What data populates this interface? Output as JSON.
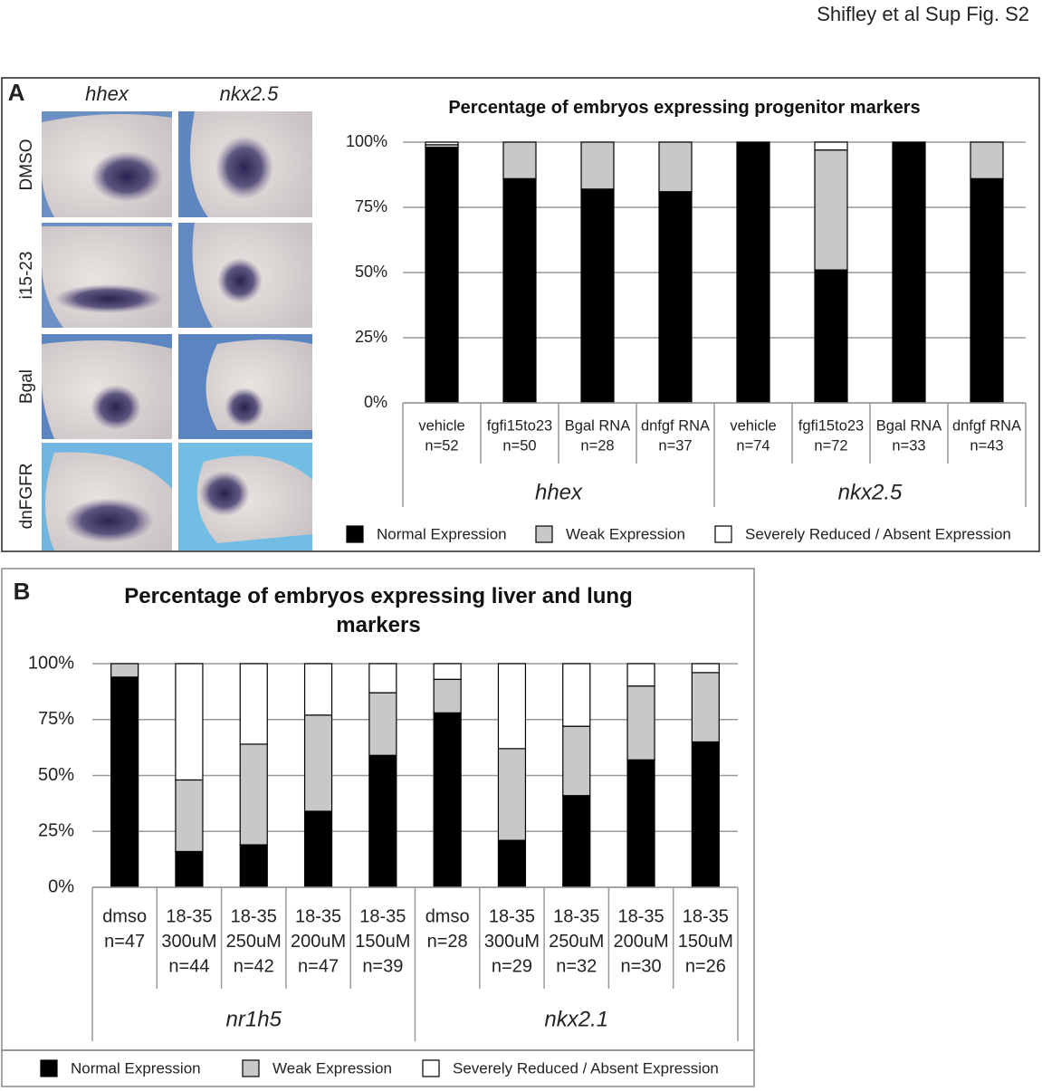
{
  "header": "Shifley et al Sup Fig. S2",
  "panel_a": {
    "label": "A",
    "columns": [
      "hhex",
      "nkx2.5"
    ],
    "rows": [
      "DMSO",
      "i15-23",
      "Bgal",
      "dnFGFR"
    ]
  },
  "panel_b": {
    "label": "B"
  },
  "chart_data": [
    {
      "type": "stacked-bar",
      "title": "Percentage of embryos expressing progenitor markers",
      "categories": [
        [
          "vehicle",
          "n=52"
        ],
        [
          "fgfi15to23",
          "n=50"
        ],
        [
          "Bgal RNA",
          "n=28"
        ],
        [
          "dnfgf RNA",
          "n=37"
        ],
        [
          "vehicle",
          "n=74"
        ],
        [
          "fgfi15to23",
          "n=72"
        ],
        [
          "Bgal RNA",
          "n=33"
        ],
        [
          "dnfgf RNA",
          "n=43"
        ]
      ],
      "groups": [
        "hhex",
        "nkx2.5"
      ],
      "series": [
        {
          "name": "Normal Expression",
          "color": "#000000",
          "values": [
            98,
            86,
            82,
            81,
            100,
            51,
            100,
            86
          ]
        },
        {
          "name": "Weak Expression",
          "color": "#c8c8c8",
          "values": [
            1,
            14,
            18,
            19,
            0,
            46,
            0,
            14
          ]
        },
        {
          "name": "Severely Reduced / Absent Expression",
          "color": "#ffffff",
          "values": [
            1,
            0,
            0,
            0,
            0,
            3,
            0,
            0
          ]
        }
      ],
      "ylim": [
        0,
        100
      ],
      "yticks": [
        {
          "value": 0,
          "label": "0%"
        },
        {
          "value": 25,
          "label": "25%"
        },
        {
          "value": 50,
          "label": "50%"
        },
        {
          "value": 75,
          "label": "75%"
        },
        {
          "value": 100,
          "label": "100%"
        }
      ],
      "grid": true,
      "legend": "bottom"
    },
    {
      "type": "stacked-bar",
      "title": "Percentage of embryos expressing liver and lung markers",
      "categories": [
        [
          "dmso",
          "n=47"
        ],
        [
          "18-35",
          "300uM",
          "n=44"
        ],
        [
          "18-35",
          "250uM",
          "n=42"
        ],
        [
          "18-35",
          "200uM",
          "n=47"
        ],
        [
          "18-35",
          "150uM",
          "n=39"
        ],
        [
          "dmso",
          "n=28"
        ],
        [
          "18-35",
          "300uM",
          "n=29"
        ],
        [
          "18-35",
          "250uM",
          "n=32"
        ],
        [
          "18-35",
          "200uM",
          "n=30"
        ],
        [
          "18-35",
          "150uM",
          "n=26"
        ]
      ],
      "groups": [
        "nr1h5",
        "nkx2.1"
      ],
      "series": [
        {
          "name": "Normal Expression",
          "color": "#000000",
          "values": [
            94,
            16,
            19,
            34,
            59,
            78,
            21,
            41,
            57,
            65
          ]
        },
        {
          "name": "Weak Expression",
          "color": "#c8c8c8",
          "values": [
            6,
            32,
            45,
            43,
            28,
            15,
            41,
            31,
            33,
            31
          ]
        },
        {
          "name": "Severely Reduced / Absent Expression",
          "color": "#ffffff",
          "values": [
            0,
            52,
            36,
            23,
            13,
            7,
            38,
            28,
            10,
            4
          ]
        }
      ],
      "ylim": [
        0,
        100
      ],
      "yticks": [
        {
          "value": 0,
          "label": "0%"
        },
        {
          "value": 25,
          "label": "25%"
        },
        {
          "value": 50,
          "label": "50%"
        },
        {
          "value": 75,
          "label": "75%"
        },
        {
          "value": 100,
          "label": "100%"
        }
      ],
      "grid": true,
      "legend": "bottom"
    }
  ]
}
